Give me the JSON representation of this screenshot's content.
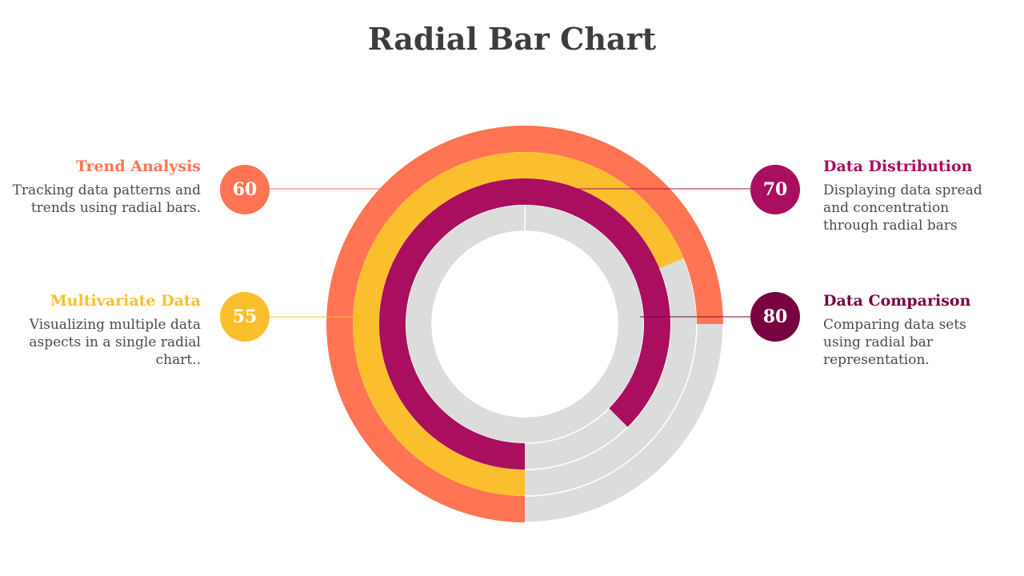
{
  "title": "Radial Bar Chart",
  "chart_data": {
    "type": "radial-bar",
    "max": 100,
    "series": [
      {
        "name": "Trend Analysis",
        "value": 60,
        "description": "Tracking data patterns and trends using radial bars.",
        "color": "#FF7452"
      },
      {
        "name": "Multivariate Data",
        "value": 55,
        "description": "Visualizing multiple data aspects in a single radial chart..",
        "color": "#FBBF2E"
      },
      {
        "name": "Data Distribution",
        "value": 70,
        "description": "Displaying data spread and concentration through radial bars",
        "color": "#A90F5E"
      },
      {
        "name": "Data Comparison",
        "value": 80,
        "description": "Comparing data sets using radial bar representation.",
        "color": "#780340"
      }
    ],
    "track_color": "#DCDCDC"
  }
}
